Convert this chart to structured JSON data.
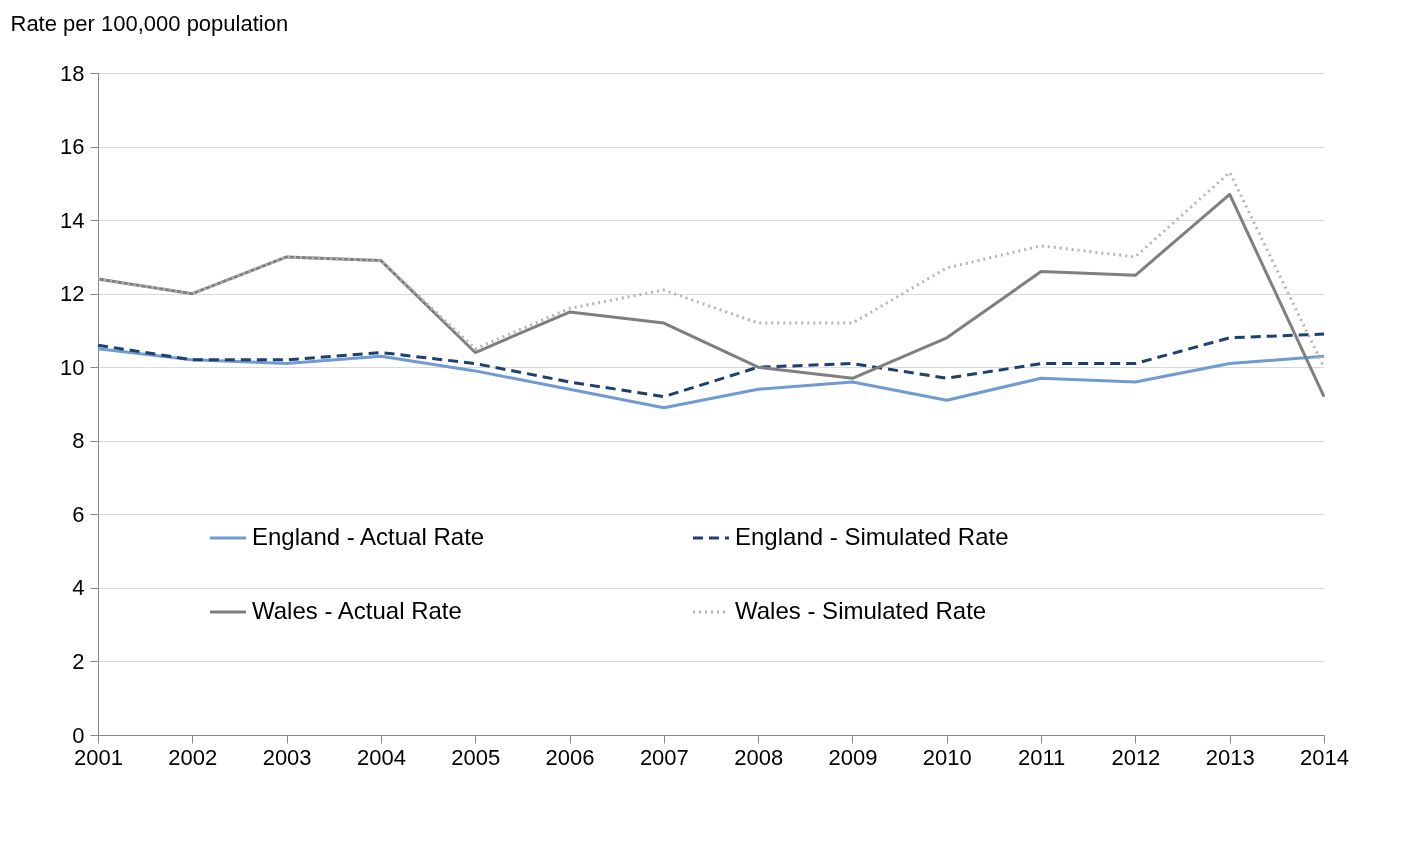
{
  "chart_data": {
    "type": "line",
    "ylabel": "Rate per 100,000 population",
    "categories": [
      "2001",
      "2002",
      "2003",
      "2004",
      "2005",
      "2006",
      "2007",
      "2008",
      "2009",
      "2010",
      "2011",
      "2012",
      "2013",
      "2014"
    ],
    "series": [
      {
        "name": "England - Actual Rate",
        "color": "#6f9ad3",
        "line_style": "solid",
        "values": [
          10.5,
          10.2,
          10.1,
          10.3,
          9.9,
          9.4,
          8.9,
          9.4,
          9.6,
          9.1,
          9.7,
          9.6,
          10.1,
          10.3
        ]
      },
      {
        "name": "England - Simulated Rate",
        "color": "#1f3f6e",
        "line_style": "dashed",
        "values": [
          10.6,
          10.2,
          10.2,
          10.4,
          10.1,
          9.6,
          9.2,
          10.0,
          10.1,
          9.7,
          10.1,
          10.1,
          10.8,
          10.9
        ]
      },
      {
        "name": "Wales - Actual Rate",
        "color": "#7f7f7f",
        "line_style": "solid",
        "values": [
          12.4,
          12.0,
          13.0,
          12.9,
          10.4,
          11.5,
          11.2,
          10.0,
          9.7,
          10.8,
          12.6,
          12.5,
          14.7,
          9.2
        ]
      },
      {
        "name": "Wales - Simulated Rate",
        "color": "#b4b4b4",
        "line_style": "dotted",
        "values": [
          12.4,
          12.0,
          13.0,
          12.9,
          10.5,
          11.6,
          12.1,
          11.2,
          11.2,
          12.7,
          13.3,
          13.0,
          15.3,
          10.0
        ]
      }
    ],
    "ylim": [
      0,
      18
    ],
    "yticks": [
      0,
      2,
      4,
      6,
      8,
      10,
      12,
      14,
      16,
      18
    ],
    "grid": "y",
    "legend": "bottom"
  }
}
